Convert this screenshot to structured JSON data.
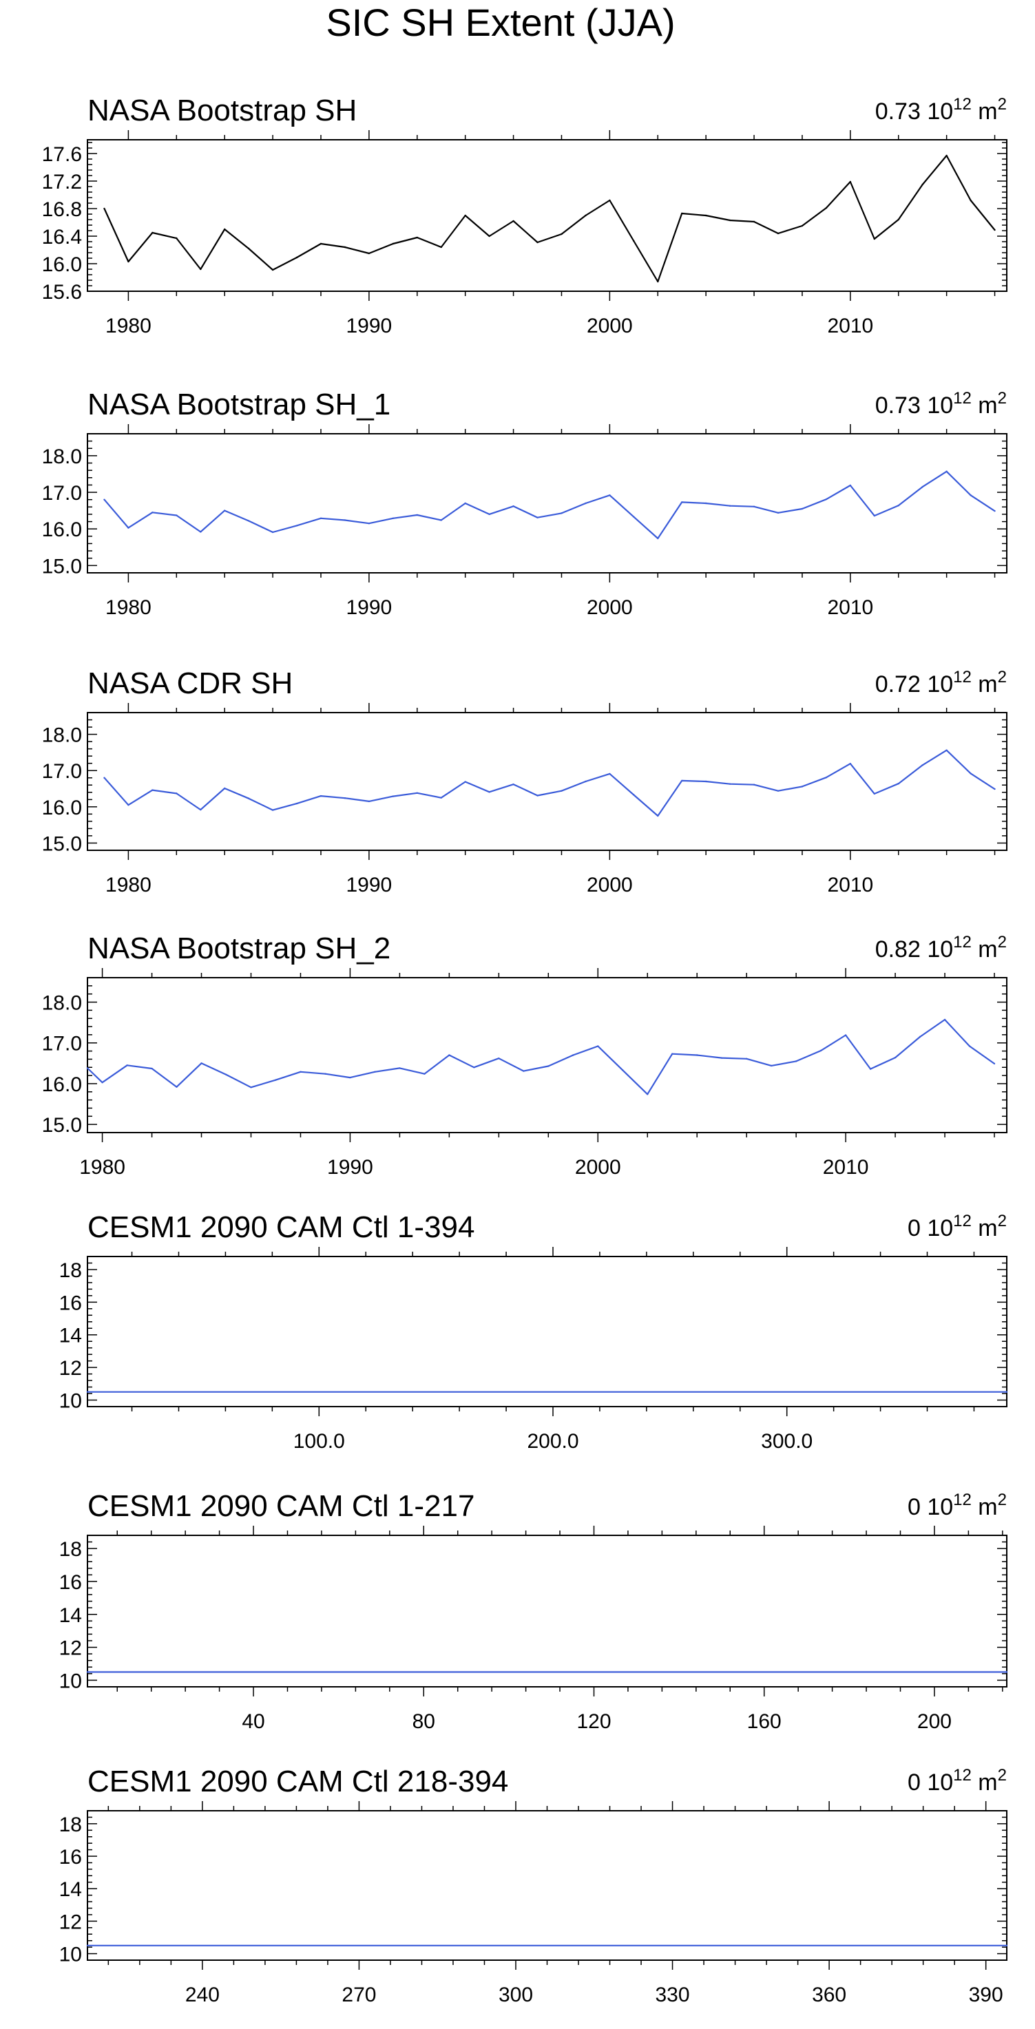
{
  "figure": {
    "title": "SIC SH Extent (JJA)",
    "line_color": "#3a5bd9",
    "obs_line_color": "#000000",
    "unit_base": "10",
    "unit_exp": "12",
    "unit_m": " m",
    "unit_m_exp": "2"
  },
  "chart_data": [
    {
      "type": "line",
      "title": "NASA Bootstrap SH",
      "stat_value": "0.73",
      "x": [
        1979,
        1980,
        1981,
        1982,
        1983,
        1984,
        1985,
        1986,
        1987,
        1988,
        1989,
        1990,
        1991,
        1992,
        1993,
        1994,
        1995,
        1996,
        1997,
        1998,
        1999,
        2000,
        2001,
        2002,
        2003,
        2004,
        2005,
        2006,
        2007,
        2008,
        2009,
        2010,
        2011,
        2012,
        2013,
        2014,
        2015,
        2016
      ],
      "values": [
        16.8,
        16.03,
        16.45,
        16.37,
        15.92,
        16.5,
        16.22,
        15.91,
        16.09,
        16.29,
        16.24,
        16.15,
        16.29,
        16.38,
        16.24,
        16.7,
        16.4,
        16.62,
        16.31,
        16.43,
        16.7,
        16.92,
        16.33,
        15.74,
        16.73,
        16.7,
        16.63,
        16.61,
        16.44,
        16.55,
        16.81,
        17.19,
        16.36,
        16.64,
        17.15,
        17.57,
        16.92,
        16.49
      ],
      "xlim": [
        1978.3,
        2016.5
      ],
      "ylim": [
        15.6,
        17.8
      ],
      "yticks": [
        15.6,
        16.0,
        16.4,
        16.8,
        17.2,
        17.6
      ],
      "ytick_labels": [
        "15.6",
        "16.0",
        "16.4",
        "16.8",
        "17.2",
        "17.6"
      ],
      "xticks": [
        1980,
        1990,
        2000,
        2010
      ],
      "xtick_labels": [
        "1980",
        "1990",
        "2000",
        "2010"
      ],
      "series_color": "black"
    },
    {
      "type": "line",
      "title": "NASA Bootstrap SH_1",
      "stat_value": "0.73",
      "x": [
        1979,
        1980,
        1981,
        1982,
        1983,
        1984,
        1985,
        1986,
        1987,
        1988,
        1989,
        1990,
        1991,
        1992,
        1993,
        1994,
        1995,
        1996,
        1997,
        1998,
        1999,
        2000,
        2001,
        2002,
        2003,
        2004,
        2005,
        2006,
        2007,
        2008,
        2009,
        2010,
        2011,
        2012,
        2013,
        2014,
        2015,
        2016
      ],
      "values": [
        16.8,
        16.03,
        16.45,
        16.37,
        15.92,
        16.5,
        16.22,
        15.91,
        16.09,
        16.29,
        16.24,
        16.15,
        16.29,
        16.38,
        16.24,
        16.7,
        16.4,
        16.62,
        16.31,
        16.43,
        16.7,
        16.92,
        16.33,
        15.74,
        16.73,
        16.7,
        16.63,
        16.61,
        16.44,
        16.55,
        16.81,
        17.19,
        16.36,
        16.64,
        17.15,
        17.57,
        16.92,
        16.49
      ],
      "xlim": [
        1978.3,
        2016.5
      ],
      "ylim": [
        14.8,
        18.6
      ],
      "yticks": [
        15.0,
        16.0,
        17.0,
        18.0
      ],
      "ytick_labels": [
        "15.0",
        "16.0",
        "17.0",
        "18.0"
      ],
      "xticks": [
        1980,
        1990,
        2000,
        2010
      ],
      "xtick_labels": [
        "1980",
        "1990",
        "2000",
        "2010"
      ],
      "series_color": "blue"
    },
    {
      "type": "line",
      "title": "NASA CDR SH",
      "stat_value": "0.72",
      "x": [
        1979,
        1980,
        1981,
        1982,
        1983,
        1984,
        1985,
        1986,
        1987,
        1988,
        1989,
        1990,
        1991,
        1992,
        1993,
        1994,
        1995,
        1996,
        1997,
        1998,
        1999,
        2000,
        2001,
        2002,
        2003,
        2004,
        2005,
        2006,
        2007,
        2008,
        2009,
        2010,
        2011,
        2012,
        2013,
        2014,
        2015,
        2016
      ],
      "values": [
        16.8,
        16.05,
        16.46,
        16.37,
        15.92,
        16.51,
        16.23,
        15.91,
        16.09,
        16.3,
        16.24,
        16.15,
        16.29,
        16.38,
        16.25,
        16.69,
        16.41,
        16.62,
        16.31,
        16.44,
        16.7,
        16.91,
        16.33,
        15.75,
        16.72,
        16.7,
        16.63,
        16.61,
        16.44,
        16.56,
        16.81,
        17.19,
        16.36,
        16.64,
        17.15,
        17.56,
        16.92,
        16.49
      ],
      "xlim": [
        1978.3,
        2016.5
      ],
      "ylim": [
        14.8,
        18.6
      ],
      "yticks": [
        15.0,
        16.0,
        17.0,
        18.0
      ],
      "ytick_labels": [
        "15.0",
        "16.0",
        "17.0",
        "18.0"
      ],
      "xticks": [
        1980,
        1990,
        2000,
        2010
      ],
      "xtick_labels": [
        "1980",
        "1990",
        "2000",
        "2010"
      ],
      "series_color": "blue"
    },
    {
      "type": "line",
      "title": "NASA Bootstrap SH_2",
      "stat_value": "0.82",
      "x": [
        1979.4,
        1980,
        1981,
        1982,
        1983,
        1984,
        1985,
        1986,
        1987,
        1988,
        1989,
        1990,
        1991,
        1992,
        1993,
        1994,
        1995,
        1996,
        1997,
        1998,
        1999,
        2000,
        2001,
        2002,
        2003,
        2004,
        2005,
        2006,
        2007,
        2008,
        2009,
        2010,
        2011,
        2012,
        2013,
        2014,
        2015,
        2016
      ],
      "values": [
        16.38,
        16.03,
        16.45,
        16.37,
        15.92,
        16.5,
        16.22,
        15.91,
        16.09,
        16.29,
        16.24,
        16.15,
        16.29,
        16.38,
        16.24,
        16.7,
        16.4,
        16.62,
        16.31,
        16.43,
        16.7,
        16.92,
        16.33,
        15.74,
        16.73,
        16.7,
        16.63,
        16.61,
        16.44,
        16.55,
        16.81,
        17.19,
        16.36,
        16.64,
        17.15,
        17.57,
        16.92,
        16.49
      ],
      "xlim": [
        1979.4,
        2016.5
      ],
      "ylim": [
        14.8,
        18.6
      ],
      "yticks": [
        15.0,
        16.0,
        17.0,
        18.0
      ],
      "ytick_labels": [
        "15.0",
        "16.0",
        "17.0",
        "18.0"
      ],
      "xticks": [
        1980,
        1990,
        2000,
        2010
      ],
      "xtick_labels": [
        "1980",
        "1990",
        "2000",
        "2010"
      ],
      "series_color": "blue"
    },
    {
      "type": "line",
      "title": "CESM1 2090 CAM Ctl 1-394",
      "stat_value": "0",
      "x": [
        1,
        394
      ],
      "values": [
        10.5,
        10.5
      ],
      "xlim": [
        1,
        394
      ],
      "ylim": [
        9.6,
        18.8
      ],
      "yticks": [
        10,
        12,
        14,
        16,
        18
      ],
      "ytick_labels": [
        "10",
        "12",
        "14",
        "16",
        "18"
      ],
      "xticks": [
        100,
        200,
        300
      ],
      "xtick_labels": [
        "100.0",
        "200.0",
        "300.0"
      ],
      "series_color": "blue"
    },
    {
      "type": "line",
      "title": "CESM1 2090 CAM Ctl 1-217",
      "stat_value": "0",
      "x": [
        1,
        217
      ],
      "values": [
        10.5,
        10.5
      ],
      "xlim": [
        1,
        217
      ],
      "ylim": [
        9.6,
        18.8
      ],
      "yticks": [
        10,
        12,
        14,
        16,
        18
      ],
      "ytick_labels": [
        "10",
        "12",
        "14",
        "16",
        "18"
      ],
      "xticks": [
        40,
        80,
        120,
        160,
        200
      ],
      "xtick_labels": [
        "40",
        "80",
        "120",
        "160",
        "200"
      ],
      "series_color": "blue"
    },
    {
      "type": "line",
      "title": "CESM1 2090 CAM Ctl 218-394",
      "stat_value": "0",
      "x": [
        218,
        394
      ],
      "values": [
        10.5,
        10.5
      ],
      "xlim": [
        218,
        394
      ],
      "ylim": [
        9.6,
        18.8
      ],
      "yticks": [
        10,
        12,
        14,
        16,
        18
      ],
      "ytick_labels": [
        "10",
        "12",
        "14",
        "16",
        "18"
      ],
      "xticks": [
        240,
        270,
        300,
        330,
        360,
        390
      ],
      "xtick_labels": [
        "240",
        "270",
        "300",
        "330",
        "360",
        "390"
      ],
      "series_color": "blue"
    }
  ]
}
